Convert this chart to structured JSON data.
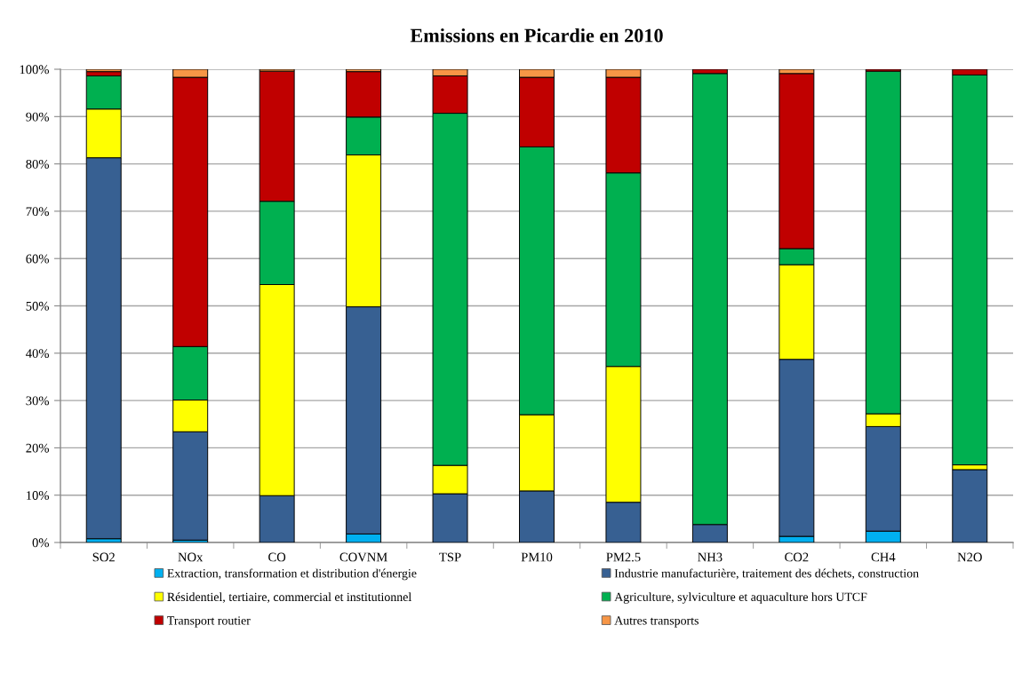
{
  "chart_data": {
    "type": "bar",
    "title": "Emissions en Picardie en 2010",
    "categories": [
      "SO2",
      "NOx",
      "CO",
      "COVNM",
      "TSP",
      "PM10",
      "PM2.5",
      "NH3",
      "CO2",
      "CH4",
      "N2O"
    ],
    "stacked": true,
    "series": [
      {
        "name": "Extraction, transformation et distribution d'énergie",
        "color": "#00b0f0",
        "values": [
          0.8,
          0.5,
          0,
          1.8,
          0,
          0,
          0,
          0,
          1.3,
          2.4,
          0
        ]
      },
      {
        "name": "Industrie manufacturière, traitement des déchets, construction",
        "color": "#376092",
        "values": [
          80.5,
          22.9,
          9.9,
          48.0,
          10.3,
          10.9,
          8.5,
          3.8,
          37.4,
          22.1,
          15.4
        ]
      },
      {
        "name": "Résidentiel, tertiaire, commercial et institutionnel",
        "color": "#ffff00",
        "values": [
          10.3,
          6.7,
          44.6,
          32.1,
          6.0,
          16.1,
          28.7,
          0,
          20.0,
          2.7,
          1.0
        ]
      },
      {
        "name": "Agriculture, sylviculture et aquaculture hors UTCF",
        "color": "#00b050",
        "values": [
          7.0,
          11.3,
          17.6,
          8.0,
          74.4,
          56.6,
          40.9,
          95.3,
          3.4,
          72.4,
          82.4
        ]
      },
      {
        "name": "Transport routier",
        "color": "#c00000",
        "values": [
          0.9,
          56.9,
          27.5,
          9.6,
          7.9,
          14.7,
          20.2,
          0.9,
          37.0,
          0.4,
          1.2
        ]
      },
      {
        "name": "Autres transports",
        "color": "#f79646",
        "values": [
          0.5,
          1.7,
          0.4,
          0.5,
          1.4,
          1.7,
          1.7,
          0,
          0.9,
          0,
          0
        ]
      }
    ],
    "ylim": [
      0,
      100
    ],
    "yticks": [
      {
        "value": 0,
        "label": "0%"
      },
      {
        "value": 10,
        "label": "10%"
      },
      {
        "value": 20,
        "label": "20%"
      },
      {
        "value": 30,
        "label": "30%"
      },
      {
        "value": 40,
        "label": "40%"
      },
      {
        "value": 50,
        "label": "50%"
      },
      {
        "value": 60,
        "label": "60%"
      },
      {
        "value": 70,
        "label": "70%"
      },
      {
        "value": 80,
        "label": "80%"
      },
      {
        "value": 90,
        "label": "90%"
      },
      {
        "value": 100,
        "label": "100%"
      }
    ],
    "grid": "y",
    "legend": "bottom"
  }
}
